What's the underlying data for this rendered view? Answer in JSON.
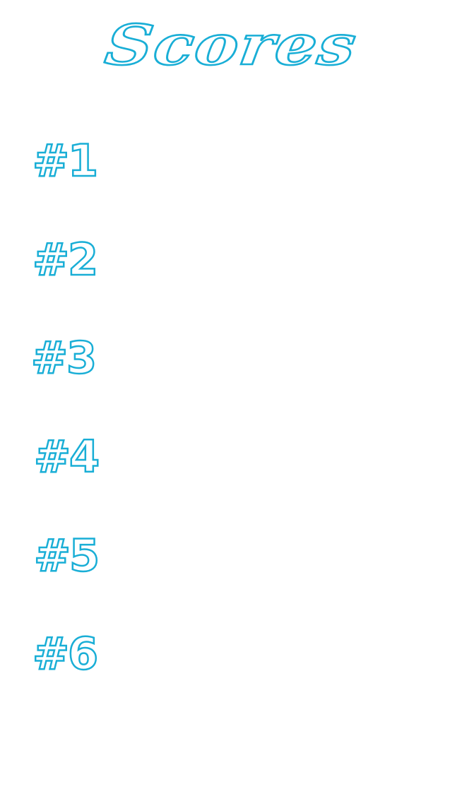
{
  "title": "Scores",
  "ranks": [
    "#1",
    "#2",
    "#3",
    "#4",
    "#5",
    "#6"
  ],
  "colors": {
    "outline": "#19aed6",
    "fill": "#ffffff",
    "background": "#ffffff"
  }
}
